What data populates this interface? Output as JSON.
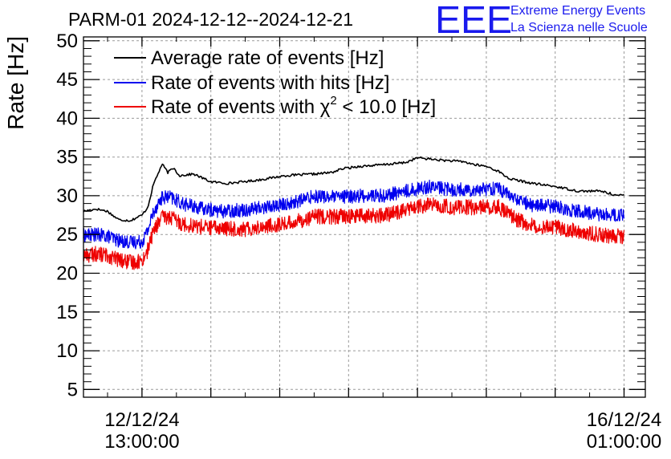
{
  "chart_data": {
    "type": "line",
    "title": "PARM-01 2024-12-12--2024-12-21",
    "ylabel": "Rate [Hz]",
    "xlabel": "",
    "ylim": [
      4,
      50.5
    ],
    "yticks": [
      5,
      10,
      15,
      20,
      25,
      30,
      35,
      40,
      45,
      50
    ],
    "xlim_hours": [
      -10.2,
      87.7
    ],
    "xticks": [
      {
        "hours": 0,
        "label_line1": "12/12/24",
        "label_line2": "13:00:00"
      },
      {
        "hours": 84,
        "label_line1": "16/12/24",
        "label_line2": "01:00:00"
      }
    ],
    "grid": true,
    "legend_position": "top-left",
    "logo": {
      "mark": "EEE",
      "line1": "Extreme Energy Events",
      "line2": "La Scienza nelle Scuole"
    },
    "series": [
      {
        "name": "Average rate of events [Hz]",
        "color": "#000000",
        "noise": 0.15,
        "points": [
          [
            -10.2,
            28.0
          ],
          [
            -8,
            28.3
          ],
          [
            -6,
            28.0
          ],
          [
            -5,
            27.4
          ],
          [
            -4,
            26.9
          ],
          [
            -2,
            26.8
          ],
          [
            0,
            27.5
          ],
          [
            1,
            28.5
          ],
          [
            2,
            31.5
          ],
          [
            3,
            33.2
          ],
          [
            3.5,
            34.1
          ],
          [
            4.5,
            33.0
          ],
          [
            5.5,
            33.6
          ],
          [
            6.5,
            32.6
          ],
          [
            9,
            32.8
          ],
          [
            12,
            31.8
          ],
          [
            15,
            31.6
          ],
          [
            20,
            32.0
          ],
          [
            25,
            32.6
          ],
          [
            30,
            32.8
          ],
          [
            33,
            33.0
          ],
          [
            35,
            33.5
          ],
          [
            38,
            33.8
          ],
          [
            42,
            34.0
          ],
          [
            46,
            34.3
          ],
          [
            48,
            34.9
          ],
          [
            52,
            34.6
          ],
          [
            56,
            34.4
          ],
          [
            58,
            34.0
          ],
          [
            60,
            33.8
          ],
          [
            62,
            33.2
          ],
          [
            64,
            32.2
          ],
          [
            68,
            31.6
          ],
          [
            72,
            31.2
          ],
          [
            76,
            30.6
          ],
          [
            80,
            30.6
          ],
          [
            83,
            30.0
          ],
          [
            84,
            30.1
          ]
        ]
      },
      {
        "name": "Rate of events with hits [Hz]",
        "color": "#0000ee",
        "noise": 0.9,
        "points": [
          [
            -10.2,
            24.9
          ],
          [
            -8,
            25.0
          ],
          [
            -6,
            24.8
          ],
          [
            -4,
            24.2
          ],
          [
            -2,
            24.0
          ],
          [
            0,
            24.1
          ],
          [
            1,
            25.5
          ],
          [
            2,
            28.0
          ],
          [
            3.5,
            29.8
          ],
          [
            5,
            29.8
          ],
          [
            7,
            29.0
          ],
          [
            10,
            28.4
          ],
          [
            14,
            28.0
          ],
          [
            18,
            28.2
          ],
          [
            22,
            28.6
          ],
          [
            26,
            29.0
          ],
          [
            30,
            30.0
          ],
          [
            34,
            29.8
          ],
          [
            38,
            30.0
          ],
          [
            42,
            30.0
          ],
          [
            46,
            30.6
          ],
          [
            50,
            31.2
          ],
          [
            54,
            30.8
          ],
          [
            58,
            30.8
          ],
          [
            62,
            31.0
          ],
          [
            65,
            29.6
          ],
          [
            68,
            28.8
          ],
          [
            72,
            28.6
          ],
          [
            76,
            28.0
          ],
          [
            80,
            27.6
          ],
          [
            84,
            27.4
          ]
        ]
      },
      {
        "name": "Rate of events with χ² < 10.0 [Hz]",
        "color": "#ee0000",
        "noise": 1.0,
        "points": [
          [
            -10.2,
            22.3
          ],
          [
            -8,
            22.5
          ],
          [
            -6,
            22.3
          ],
          [
            -4,
            21.7
          ],
          [
            -2,
            21.4
          ],
          [
            0,
            21.6
          ],
          [
            1,
            23.0
          ],
          [
            2,
            25.5
          ],
          [
            3.5,
            27.2
          ],
          [
            5,
            27.2
          ],
          [
            7,
            26.4
          ],
          [
            10,
            26.0
          ],
          [
            14,
            25.8
          ],
          [
            18,
            25.7
          ],
          [
            22,
            26.1
          ],
          [
            26,
            26.5
          ],
          [
            30,
            27.3
          ],
          [
            34,
            27.3
          ],
          [
            38,
            27.4
          ],
          [
            42,
            27.4
          ],
          [
            46,
            28.2
          ],
          [
            50,
            28.8
          ],
          [
            54,
            28.5
          ],
          [
            58,
            28.5
          ],
          [
            62,
            28.6
          ],
          [
            65,
            27.0
          ],
          [
            68,
            26.2
          ],
          [
            72,
            26.0
          ],
          [
            76,
            25.4
          ],
          [
            80,
            24.9
          ],
          [
            84,
            24.7
          ]
        ]
      }
    ],
    "legend_labels": {
      "black": "Average rate of events [Hz]",
      "blue": "Rate of events with hits [Hz]",
      "red_prefix": "Rate of events with ",
      "red_symbol": "χ",
      "red_superscript": "2",
      "red_suffix": " < 10.0 [Hz]"
    }
  }
}
